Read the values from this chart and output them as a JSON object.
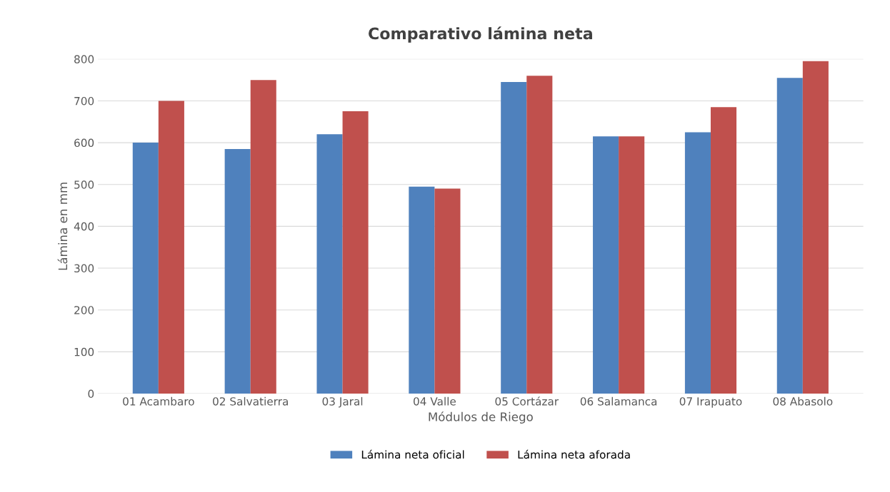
{
  "chart_data": {
    "type": "bar",
    "title": "Comparativo lámina neta",
    "xlabel": "Módulos de Riego",
    "ylabel": "Lámina en mm",
    "categories": [
      "01 Acambaro",
      "02 Salvatierra",
      "03 Jaral",
      "04 Valle",
      "05 Cortázar",
      "06 Salamanca",
      "07 Irapuato",
      "08 Abasolo"
    ],
    "series": [
      {
        "name": "Lámina neta oficial",
        "color": "#4f81bd",
        "values": [
          600,
          585,
          620,
          495,
          745,
          615,
          625,
          755
        ]
      },
      {
        "name": "Lámina neta aforada",
        "color": "#c0504d",
        "values": [
          700,
          750,
          675,
          490,
          760,
          615,
          685,
          795
        ]
      }
    ],
    "ylim": [
      0,
      800
    ],
    "yticks": [
      0,
      100,
      200,
      300,
      400,
      500,
      600,
      700,
      800
    ],
    "grid": "y",
    "legend": "bottom"
  }
}
